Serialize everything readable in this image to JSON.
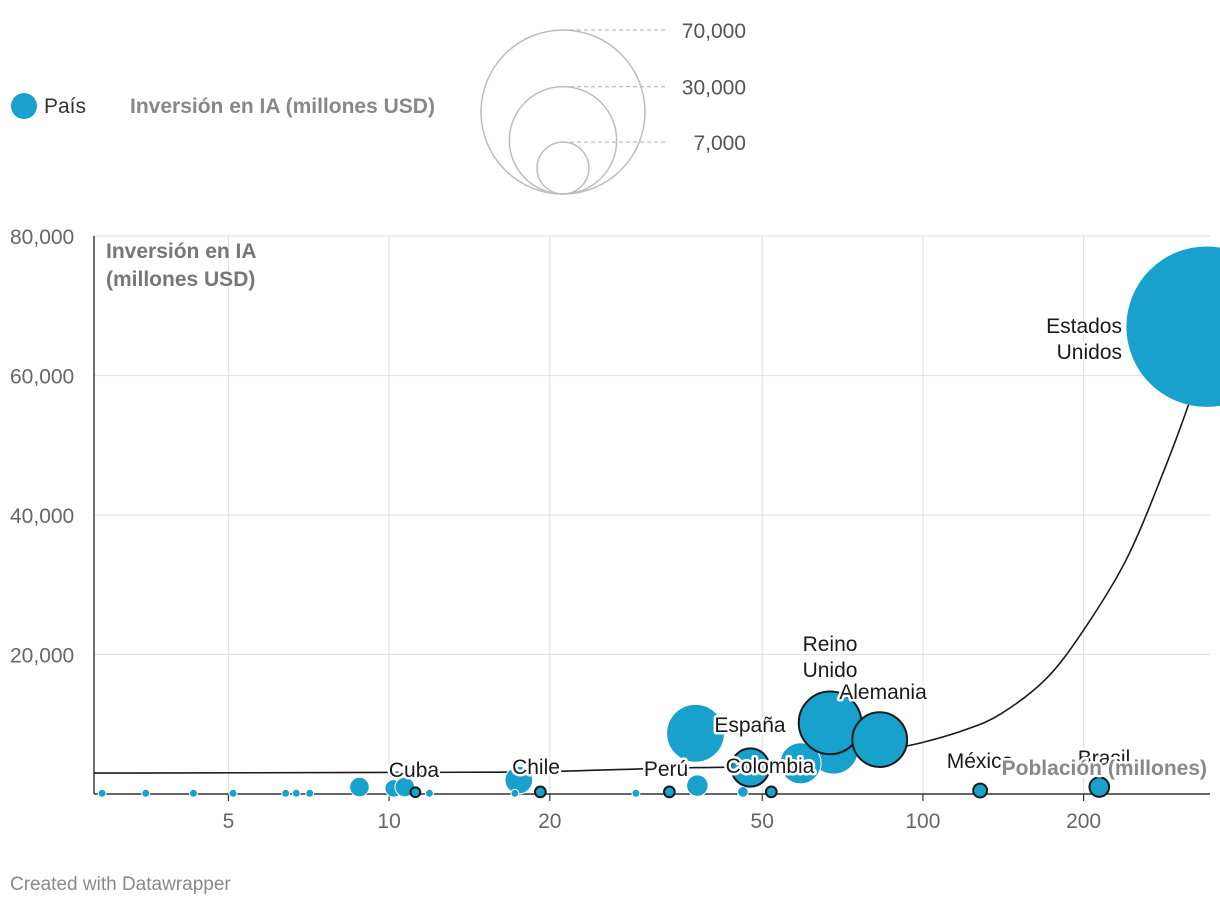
{
  "chart_data": {
    "type": "scatter",
    "subtype": "bubble",
    "x_scale": "log",
    "xlim": [
      2.8,
      345
    ],
    "ylim": [
      0,
      80000
    ],
    "xlabel": "Población (millones)",
    "ylabel_lines": [
      "Inversión en IA",
      "(millones USD)"
    ],
    "x_ticks": [
      {
        "value": 5,
        "label": "5"
      },
      {
        "value": 10,
        "label": "10"
      },
      {
        "value": 20,
        "label": "20"
      },
      {
        "value": 50,
        "label": "50"
      },
      {
        "value": 100,
        "label": "100"
      },
      {
        "value": 200,
        "label": "200"
      }
    ],
    "y_ticks": [
      {
        "value": 0,
        "label": ""
      },
      {
        "value": 20000,
        "label": "20,000"
      },
      {
        "value": 40000,
        "label": "40,000"
      },
      {
        "value": 60000,
        "label": "60,000"
      },
      {
        "value": 80000,
        "label": "80,000"
      }
    ],
    "legend": {
      "series_label": "País",
      "size_title": "Inversión en IA (millones USD)",
      "size_values": [
        {
          "value": 70000,
          "label": "70,000"
        },
        {
          "value": 30000,
          "label": "30,000"
        },
        {
          "value": 7000,
          "label": "7,000"
        }
      ]
    },
    "trend_line_points": [
      [
        2.8,
        3000
      ],
      [
        10.6,
        3100
      ],
      [
        19,
        3200
      ],
      [
        33,
        3700
      ],
      [
        45,
        3900
      ],
      [
        55,
        4500
      ],
      [
        70,
        5200
      ],
      [
        85,
        6300
      ],
      [
        100,
        7400
      ],
      [
        120,
        9200
      ],
      [
        140,
        11500
      ],
      [
        170,
        16500
      ],
      [
        200,
        23500
      ],
      [
        240,
        33500
      ],
      [
        280,
        45500
      ],
      [
        320,
        57500
      ],
      [
        345,
        66000
      ]
    ],
    "labeled_points": [
      {
        "name": "Estados Unidos",
        "x": 340,
        "y": 67000,
        "size": 67000,
        "outlined": false
      },
      {
        "name": "Reino Unido",
        "x": 67,
        "y": 10200,
        "size": 10200,
        "outlined": true
      },
      {
        "name": "Alemania",
        "x": 83,
        "y": 7800,
        "size": 7800,
        "outlined": true
      },
      {
        "name": "España",
        "x": 47.5,
        "y": 3800,
        "size": 3800,
        "outlined": true
      },
      {
        "name": "Colombia",
        "x": 52,
        "y": 300,
        "size": 300,
        "outlined": true
      },
      {
        "name": "Perú",
        "x": 33.5,
        "y": 300,
        "size": 300,
        "outlined": true
      },
      {
        "name": "Chile",
        "x": 19.2,
        "y": 300,
        "size": 300,
        "outlined": true
      },
      {
        "name": "Cuba",
        "x": 11.2,
        "y": 250,
        "size": 250,
        "outlined": true
      },
      {
        "name": "México",
        "x": 128,
        "y": 500,
        "size": 500,
        "outlined": true
      },
      {
        "name": "Brasil",
        "x": 214,
        "y": 1000,
        "size": 1000,
        "outlined": true
      }
    ],
    "points": [
      {
        "x": 37.5,
        "y": 8700,
        "size": 8700
      },
      {
        "x": 68,
        "y": 6400,
        "size": 6400
      },
      {
        "x": 59,
        "y": 4400,
        "size": 4400
      },
      {
        "x": 47.5,
        "y": 3500,
        "size": 3500
      },
      {
        "x": 17.5,
        "y": 2000,
        "size": 2000
      },
      {
        "x": 37.8,
        "y": 1200,
        "size": 1200
      },
      {
        "x": 8.8,
        "y": 1000,
        "size": 1000
      },
      {
        "x": 10.2,
        "y": 800,
        "size": 800
      },
      {
        "x": 10.7,
        "y": 1000,
        "size": 1000
      },
      {
        "x": 46,
        "y": 300,
        "size": 300
      },
      {
        "x": 2.9,
        "y": 100,
        "size": 100
      },
      {
        "x": 3.5,
        "y": 100,
        "size": 100
      },
      {
        "x": 4.3,
        "y": 100,
        "size": 100
      },
      {
        "x": 5.1,
        "y": 100,
        "size": 100
      },
      {
        "x": 6.4,
        "y": 100,
        "size": 100
      },
      {
        "x": 6.7,
        "y": 100,
        "size": 100
      },
      {
        "x": 7.1,
        "y": 100,
        "size": 100
      },
      {
        "x": 11.9,
        "y": 100,
        "size": 100
      },
      {
        "x": 17.2,
        "y": 100,
        "size": 100
      },
      {
        "x": 29,
        "y": 100,
        "size": 100
      }
    ],
    "credit": "Created with Datawrapper"
  }
}
